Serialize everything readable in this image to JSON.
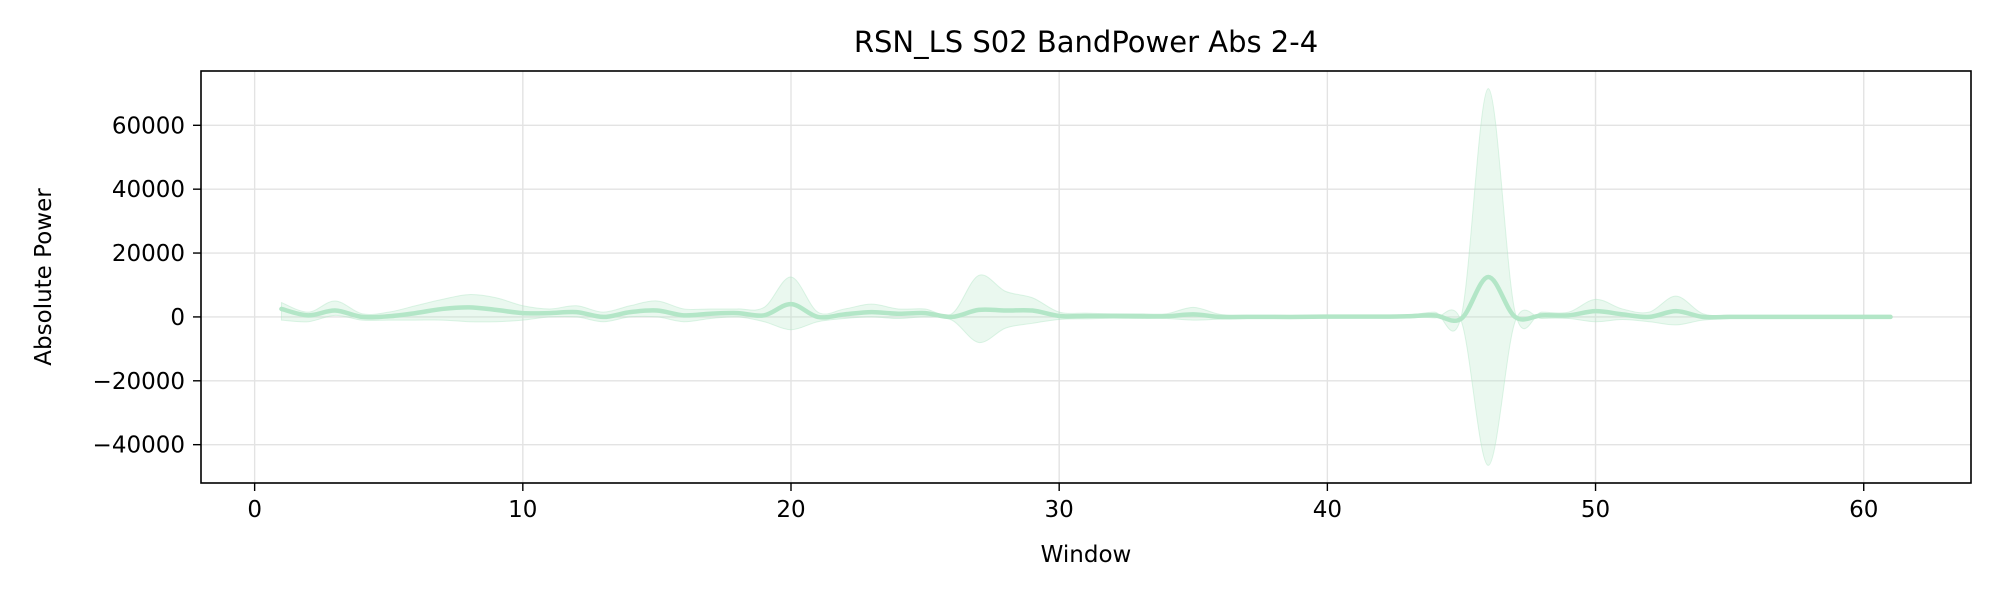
{
  "chart_data": {
    "type": "line",
    "title": "RSN_LS S02 BandPower Abs 2-4",
    "xlabel": "Window",
    "ylabel": "Absolute Power",
    "xlim": [
      -2,
      64
    ],
    "ylim": [
      -52000,
      77000
    ],
    "x_ticks": [
      0,
      10,
      20,
      30,
      40,
      50,
      60
    ],
    "x_tick_labels": [
      "0",
      "10",
      "20",
      "30",
      "40",
      "50",
      "60"
    ],
    "y_ticks": [
      -40000,
      -20000,
      0,
      20000,
      40000,
      60000
    ],
    "y_tick_labels": [
      "−40000",
      "−20000",
      "0",
      "20000",
      "40000",
      "60000"
    ],
    "grid": true,
    "legend": "none",
    "colors": {
      "line": "#b3e6c7",
      "band": "#b3e6c7"
    },
    "series": [
      {
        "x": [
          1,
          2,
          3,
          4,
          5,
          6,
          7,
          8,
          9,
          10,
          11,
          12,
          13,
          14,
          15,
          16,
          17,
          18,
          19,
          20,
          21,
          22,
          23,
          24,
          25,
          26,
          27,
          28,
          29,
          30,
          31,
          32,
          33,
          34,
          35,
          36,
          37,
          38,
          39,
          40,
          41,
          42,
          43,
          44,
          45,
          46,
          47,
          48,
          49,
          50,
          51,
          52,
          53,
          54,
          55,
          56,
          57,
          58,
          59,
          60,
          61
        ],
        "y": [
          2500,
          500,
          2000,
          0,
          200,
          1200,
          2500,
          3000,
          2200,
          1200,
          1200,
          1500,
          0,
          1500,
          2000,
          500,
          1000,
          1200,
          500,
          4000,
          0,
          800,
          1500,
          1000,
          1200,
          0,
          2200,
          2000,
          2000,
          300,
          300,
          300,
          200,
          200,
          800,
          0,
          0,
          0,
          0,
          100,
          100,
          100,
          200,
          500,
          -500,
          12500,
          0,
          500,
          500,
          1800,
          800,
          0,
          1800,
          0,
          0,
          0,
          0,
          0,
          0,
          0,
          0
        ],
        "band_upper": [
          4500,
          1500,
          5000,
          1000,
          1500,
          3500,
          5500,
          7000,
          6000,
          3500,
          2500,
          3500,
          1500,
          3500,
          5000,
          2500,
          2500,
          2500,
          3000,
          12500,
          1500,
          2500,
          4000,
          2500,
          2500,
          1000,
          13000,
          8000,
          6000,
          1500,
          1200,
          1000,
          1000,
          1000,
          3000,
          800,
          500,
          500,
          500,
          500,
          500,
          500,
          500,
          1500,
          500,
          71500,
          1500,
          1500,
          1500,
          5500,
          2500,
          1500,
          6500,
          1000,
          500,
          500,
          500,
          500,
          500,
          500,
          500
        ],
        "band_lower": [
          -1000,
          -1500,
          500,
          -1000,
          -1000,
          -1000,
          -1000,
          -1500,
          -1500,
          -1000,
          0,
          0,
          -1500,
          0,
          0,
          -1500,
          -500,
          0,
          -1500,
          -4000,
          -1500,
          -500,
          0,
          -500,
          0,
          -1000,
          -8000,
          -3500,
          -2000,
          -800,
          -600,
          -400,
          -500,
          -500,
          -1000,
          -700,
          -500,
          -400,
          -400,
          -300,
          -300,
          -300,
          -100,
          -300,
          -1500,
          -46500,
          -1500,
          -500,
          -500,
          -1500,
          -800,
          -1500,
          -2500,
          -1000,
          -500,
          -300,
          -300,
          -300,
          -300,
          -300,
          -300
        ]
      }
    ]
  }
}
